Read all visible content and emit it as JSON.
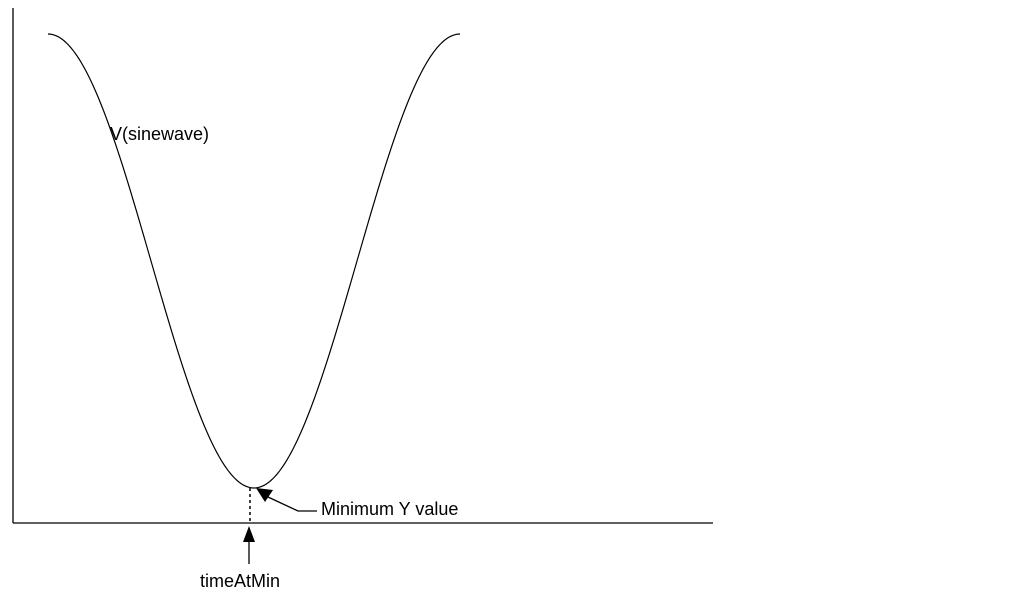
{
  "diagram": {
    "curve_label": "V(sinewave)",
    "min_annotation": "Minimum Y value",
    "time_annotation": "timeAtMin",
    "colors": {
      "ink": "#000000",
      "background": "#ffffff"
    }
  }
}
